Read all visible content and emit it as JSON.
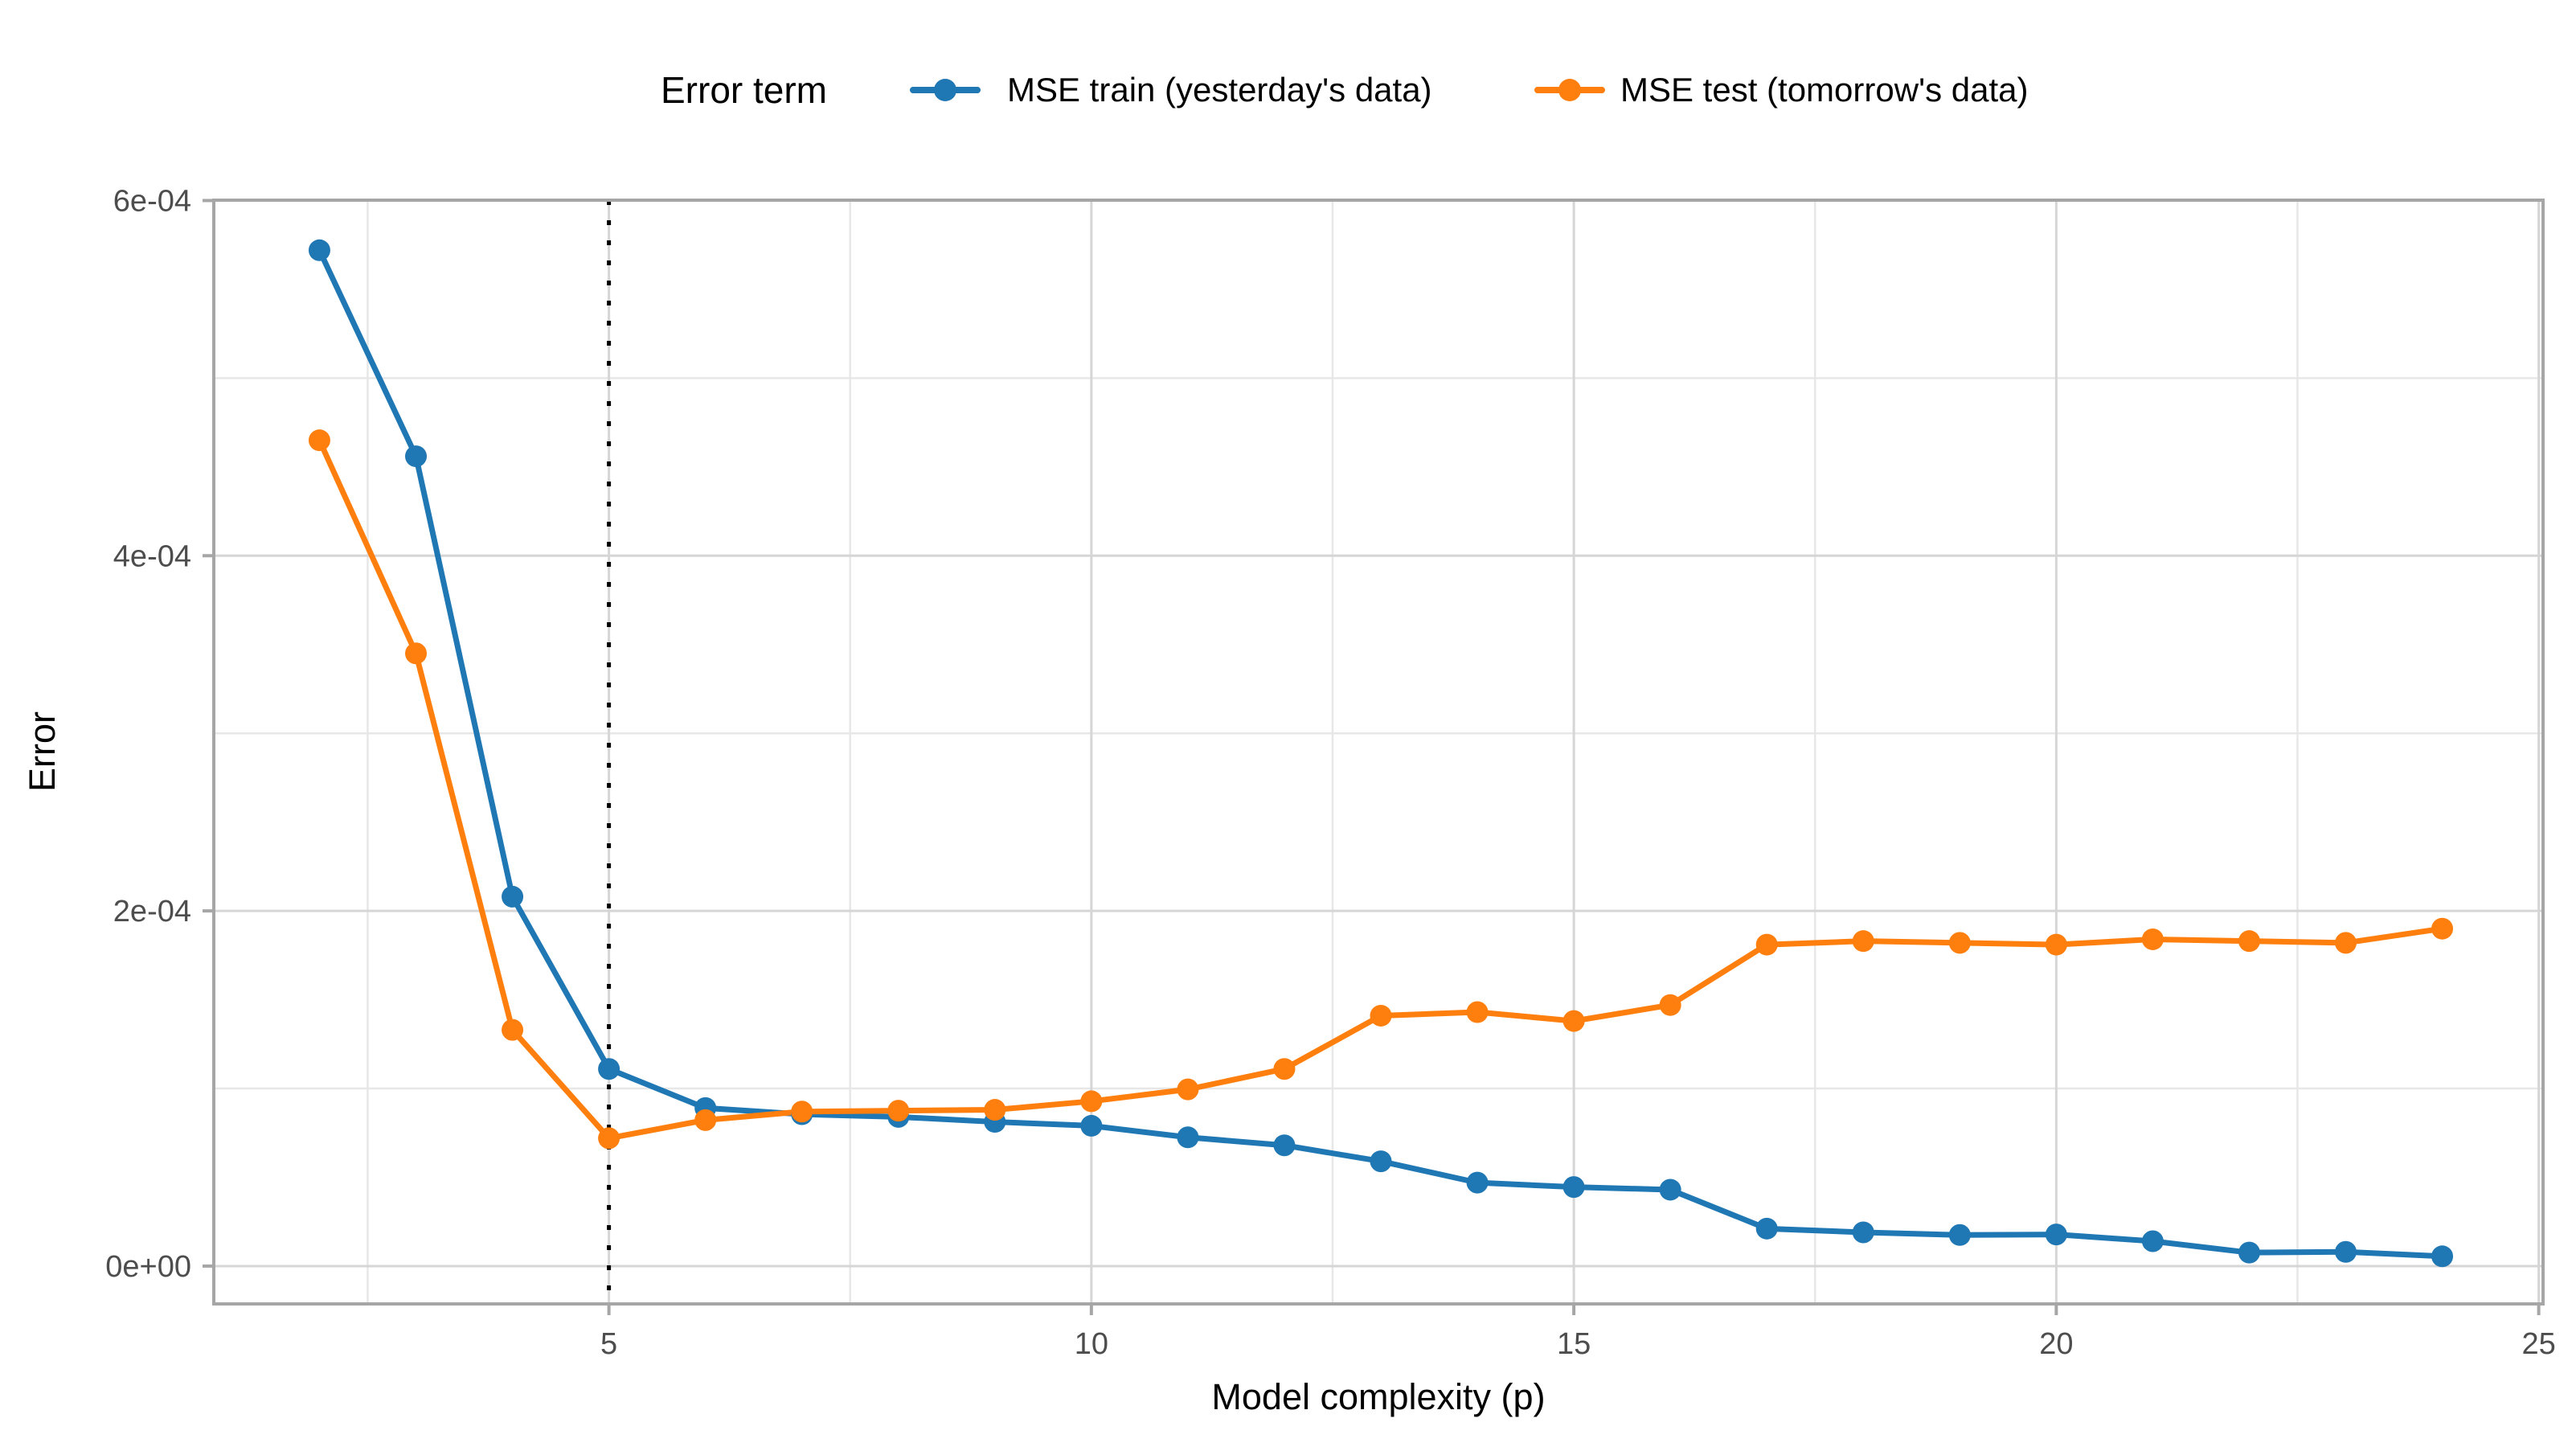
{
  "figure": {
    "background": "#ffffff",
    "panel_border_color": "#a6a6a6",
    "grid_major_color": "#d6d6d6",
    "grid_minor_color": "#e7e7e7",
    "tick_color": "#a6a6a6",
    "tick_label_color": "#4d4d4d"
  },
  "legend": {
    "title": "Error term",
    "items": [
      {
        "label": "MSE train (yesterday's data)",
        "color": "#1f77b4"
      },
      {
        "label": "MSE test (tomorrow's data)",
        "color": "#ff7f0e"
      }
    ],
    "position": "top"
  },
  "chart_data": {
    "type": "line",
    "title": "",
    "xlabel": "Model complexity (p)",
    "ylabel": "Error",
    "x": [
      2,
      3,
      4,
      5,
      6,
      7,
      8,
      9,
      10,
      11,
      12,
      13,
      14,
      15,
      16,
      17,
      18,
      19,
      20,
      21,
      22,
      23,
      24
    ],
    "series": [
      {
        "name": "MSE train (yesterday's data)",
        "color": "#1f77b4",
        "values": [
          0.000572,
          0.000456,
          0.000208,
          0.000111,
          8.9e-05,
          8.55e-05,
          8.4e-05,
          8.12e-05,
          7.9e-05,
          7.25e-05,
          6.8e-05,
          5.9e-05,
          4.7e-05,
          4.45e-05,
          4.3e-05,
          2.11e-05,
          1.9e-05,
          1.75e-05,
          1.78e-05,
          1.4e-05,
          7.6e-06,
          8e-06,
          5.5e-06
        ]
      },
      {
        "name": "MSE test (tomorrow's data)",
        "color": "#ff7f0e",
        "values": [
          0.000465,
          0.000345,
          0.000133,
          7.2e-05,
          8.22e-05,
          8.7e-05,
          8.75e-05,
          8.8e-05,
          9.28e-05,
          9.95e-05,
          0.000111,
          0.000141,
          0.000143,
          0.000138,
          0.000147,
          0.000181,
          0.000183,
          0.000182,
          0.000181,
          0.000184,
          0.000183,
          0.000182,
          0.00019
        ]
      }
    ],
    "x_ticks": {
      "major": [
        5,
        10,
        15,
        20,
        25
      ],
      "labels": [
        "5",
        "10",
        "15",
        "20",
        "25"
      ],
      "minor": [
        2.5,
        7.5,
        12.5,
        17.5,
        22.5
      ]
    },
    "y_ticks": {
      "major": [
        0,
        0.0002,
        0.0004,
        0.0006
      ],
      "labels": [
        "0e+00",
        "2e-04",
        "4e-04",
        "6e-04"
      ],
      "minor": [
        0.0001,
        0.0003,
        0.0005
      ]
    },
    "xlim": [
      0.905,
      25.045
    ],
    "ylim": [
      -2.13e-05,
      0.0006002
    ],
    "grid": "major+minor",
    "legend_position": "top",
    "annotations": {
      "vline": {
        "x": 5,
        "style": "dotted",
        "color": "#000000"
      }
    },
    "marker": "circle"
  }
}
